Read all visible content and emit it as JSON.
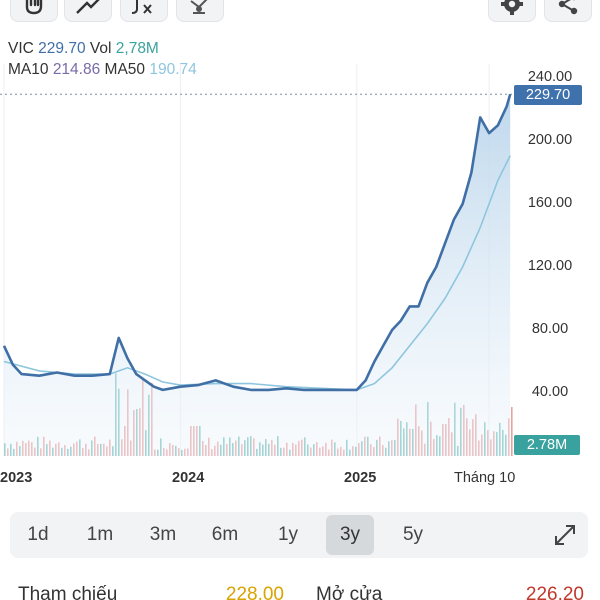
{
  "toolbar": {
    "tools_left": [
      {
        "icon": "hand-pan-icon"
      },
      {
        "icon": "trend-line-icon"
      },
      {
        "icon": "fx-indicator-icon"
      },
      {
        "icon": "drawing-tools-icon"
      }
    ],
    "tools_right": [
      {
        "icon": "gear-icon"
      },
      {
        "icon": "share-icon"
      }
    ]
  },
  "legend": {
    "ticker": "VIC",
    "price": "229.70",
    "vol_label": "Vol",
    "vol": "2,78M",
    "ma10_label": "MA10",
    "ma10": "214.86",
    "ma50_label": "MA50",
    "ma50": "190.74"
  },
  "price_tag": "229.70",
  "vol_tag": "2.78M",
  "colors": {
    "price_line": "#3f6fa5",
    "ma_line": "#8ec6de",
    "area_fill": "#cfe2f1",
    "volume_up": "#3aa29e",
    "volume_down": "#e07b7b",
    "accent": "#3f72ad"
  },
  "chart_data": {
    "type": "line",
    "y_ticks": [
      "240.00",
      "200.00",
      "160.00",
      "120.00",
      "80.00",
      "40.00"
    ],
    "ylim": [
      0,
      240
    ],
    "x_ticks": [
      "2023",
      "2024",
      "2025",
      "Tháng 10"
    ],
    "series": [
      {
        "name": "VIC",
        "x": [
          2023.0,
          2023.05,
          2023.1,
          2023.2,
          2023.3,
          2023.4,
          2023.5,
          2023.6,
          2023.65,
          2023.7,
          2023.75,
          2023.8,
          2023.85,
          2023.9,
          2023.95,
          2024.0,
          2024.1,
          2024.2,
          2024.3,
          2024.4,
          2024.5,
          2024.6,
          2024.7,
          2024.8,
          2024.9,
          2025.0,
          2025.05,
          2025.1,
          2025.15,
          2025.2,
          2025.25,
          2025.3,
          2025.35,
          2025.4,
          2025.45,
          2025.5,
          2025.55,
          2025.6,
          2025.65,
          2025.7,
          2025.75,
          2025.8,
          2025.85,
          2025.87
        ],
        "values": [
          70,
          58,
          52,
          51,
          53,
          51,
          51,
          52,
          75,
          62,
          52,
          48,
          44,
          42,
          43,
          44,
          45,
          48,
          44,
          42,
          42,
          43,
          42,
          42,
          42,
          42,
          48,
          60,
          70,
          80,
          86,
          95,
          95,
          110,
          120,
          135,
          150,
          160,
          180,
          215,
          205,
          210,
          222,
          229.7
        ]
      },
      {
        "name": "MA50",
        "x": [
          2023.0,
          2023.2,
          2023.4,
          2023.6,
          2023.7,
          2023.8,
          2023.9,
          2024.0,
          2024.2,
          2024.4,
          2024.6,
          2024.8,
          2025.0,
          2025.1,
          2025.2,
          2025.3,
          2025.4,
          2025.5,
          2025.6,
          2025.7,
          2025.8,
          2025.87
        ],
        "values": [
          60,
          54,
          52,
          52,
          56,
          52,
          47,
          45,
          46,
          46,
          44,
          43,
          42,
          46,
          56,
          70,
          84,
          100,
          120,
          145,
          175,
          190.74
        ]
      }
    ]
  },
  "ranges": [
    {
      "label": "1d"
    },
    {
      "label": "1m"
    },
    {
      "label": "3m"
    },
    {
      "label": "6m"
    },
    {
      "label": "1y"
    },
    {
      "label": "3y",
      "active": true
    },
    {
      "label": "5y"
    }
  ],
  "stats": {
    "ref_label": "Tham chiếu",
    "ref_value": "228.00",
    "ref_color": "#d9a400",
    "open_label": "Mở cửa",
    "open_value": "226.20",
    "open_color": "#c0392b"
  }
}
